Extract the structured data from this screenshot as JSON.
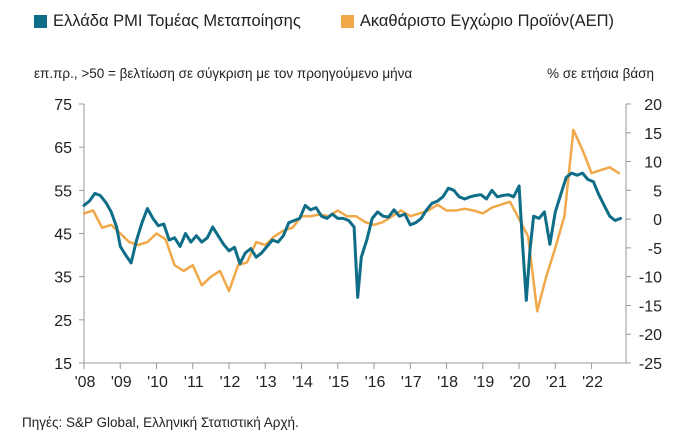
{
  "legend": {
    "pmi_label": "Ελλάδα PMI Τομέας Μεταποίησης",
    "gdp_label": "Ακαθάριστο Εγχώριο Προϊόν(ΑΕΠ)"
  },
  "subtitle_left": "επ.πρ., >50 = βελτίωση σε σύγκριση με τον προηγούμενο μήνα",
  "subtitle_right": "% σε ετήσια βάση",
  "source": "Πηγές: S&P Global, Ελληνική Στατιστική Αρχή.",
  "colors": {
    "pmi": "#0e6d87",
    "gdp": "#f0a848",
    "axis": "#9a9a9a"
  },
  "chart_data": {
    "type": "line",
    "x_range": [
      2008.0,
      2022.95
    ],
    "x_tick_labels": [
      "'08",
      "'09",
      "'10",
      "'11",
      "'12",
      "'13",
      "'14",
      "'15",
      "'16",
      "'17",
      "'18",
      "'19",
      "'20",
      "'21",
      "'22"
    ],
    "y_left": {
      "ylim": [
        15,
        75
      ],
      "ticks": [
        15,
        25,
        35,
        45,
        55,
        65,
        75
      ]
    },
    "y_right": {
      "ylim": [
        -25,
        20
      ],
      "ticks": [
        -25,
        -20,
        -15,
        -10,
        -5,
        0,
        5,
        10,
        15,
        20
      ]
    },
    "series": [
      {
        "name": "Ελλάδα PMI Τομέας Μεταποίησης",
        "axis": "left",
        "points": [
          [
            2008.0,
            51.5
          ],
          [
            2008.15,
            52.5
          ],
          [
            2008.3,
            54.3
          ],
          [
            2008.45,
            53.8
          ],
          [
            2008.6,
            52.2
          ],
          [
            2008.75,
            50.0
          ],
          [
            2008.9,
            46.5
          ],
          [
            2009.0,
            42.0
          ],
          [
            2009.15,
            40.0
          ],
          [
            2009.3,
            38.2
          ],
          [
            2009.45,
            43.5
          ],
          [
            2009.6,
            47.5
          ],
          [
            2009.75,
            50.8
          ],
          [
            2009.9,
            48.5
          ],
          [
            2010.05,
            46.8
          ],
          [
            2010.2,
            47.2
          ],
          [
            2010.35,
            43.5
          ],
          [
            2010.5,
            44.0
          ],
          [
            2010.65,
            42.0
          ],
          [
            2010.8,
            45.0
          ],
          [
            2010.95,
            43.0
          ],
          [
            2011.1,
            44.5
          ],
          [
            2011.25,
            43.0
          ],
          [
            2011.4,
            44.0
          ],
          [
            2011.55,
            46.5
          ],
          [
            2011.7,
            44.5
          ],
          [
            2011.85,
            42.5
          ],
          [
            2012.0,
            41.0
          ],
          [
            2012.15,
            41.8
          ],
          [
            2012.3,
            38.0
          ],
          [
            2012.45,
            40.5
          ],
          [
            2012.6,
            41.5
          ],
          [
            2012.75,
            39.5
          ],
          [
            2012.9,
            40.5
          ],
          [
            2013.05,
            42.0
          ],
          [
            2013.2,
            43.5
          ],
          [
            2013.35,
            43.0
          ],
          [
            2013.5,
            44.5
          ],
          [
            2013.65,
            47.5
          ],
          [
            2013.8,
            48.0
          ],
          [
            2013.95,
            48.5
          ],
          [
            2014.1,
            51.5
          ],
          [
            2014.25,
            50.5
          ],
          [
            2014.4,
            51.0
          ],
          [
            2014.55,
            49.0
          ],
          [
            2014.7,
            48.5
          ],
          [
            2014.85,
            49.5
          ],
          [
            2015.0,
            48.5
          ],
          [
            2015.15,
            48.5
          ],
          [
            2015.3,
            48.0
          ],
          [
            2015.45,
            46.5
          ],
          [
            2015.55,
            30.2
          ],
          [
            2015.65,
            39.5
          ],
          [
            2015.8,
            43.5
          ],
          [
            2015.95,
            48.5
          ],
          [
            2016.1,
            50.0
          ],
          [
            2016.25,
            49.0
          ],
          [
            2016.4,
            48.8
          ],
          [
            2016.55,
            50.5
          ],
          [
            2016.7,
            49.0
          ],
          [
            2016.85,
            49.5
          ],
          [
            2017.0,
            47.0
          ],
          [
            2017.15,
            47.5
          ],
          [
            2017.3,
            48.5
          ],
          [
            2017.45,
            50.5
          ],
          [
            2017.6,
            52.0
          ],
          [
            2017.75,
            52.5
          ],
          [
            2017.9,
            53.5
          ],
          [
            2018.05,
            55.5
          ],
          [
            2018.2,
            55.0
          ],
          [
            2018.35,
            53.5
          ],
          [
            2018.5,
            53.0
          ],
          [
            2018.65,
            53.5
          ],
          [
            2018.8,
            53.8
          ],
          [
            2018.95,
            54.0
          ],
          [
            2019.1,
            53.0
          ],
          [
            2019.25,
            55.0
          ],
          [
            2019.4,
            53.5
          ],
          [
            2019.55,
            53.8
          ],
          [
            2019.7,
            54.0
          ],
          [
            2019.85,
            53.5
          ],
          [
            2020.0,
            56.0
          ],
          [
            2020.1,
            42.0
          ],
          [
            2020.2,
            29.5
          ],
          [
            2020.3,
            41.0
          ],
          [
            2020.4,
            49.0
          ],
          [
            2020.55,
            48.5
          ],
          [
            2020.7,
            50.0
          ],
          [
            2020.85,
            42.5
          ],
          [
            2021.0,
            50.0
          ],
          [
            2021.15,
            54.0
          ],
          [
            2021.3,
            58.0
          ],
          [
            2021.45,
            59.0
          ],
          [
            2021.6,
            58.5
          ],
          [
            2021.75,
            59.0
          ],
          [
            2021.9,
            57.5
          ],
          [
            2022.05,
            57.0
          ],
          [
            2022.2,
            54.0
          ],
          [
            2022.35,
            51.5
          ],
          [
            2022.5,
            49.0
          ],
          [
            2022.65,
            48.0
          ],
          [
            2022.8,
            48.5
          ]
        ]
      },
      {
        "name": "Ακαθάριστο Εγχώριο Προϊόν(ΑΕΠ)",
        "axis": "right",
        "points": [
          [
            2008.0,
            1.0
          ],
          [
            2008.25,
            1.5
          ],
          [
            2008.5,
            -1.5
          ],
          [
            2008.75,
            -1.0
          ],
          [
            2009.0,
            -2.5
          ],
          [
            2009.25,
            -4.0
          ],
          [
            2009.5,
            -4.5
          ],
          [
            2009.75,
            -4.0
          ],
          [
            2010.0,
            -2.5
          ],
          [
            2010.25,
            -3.5
          ],
          [
            2010.5,
            -8.0
          ],
          [
            2010.75,
            -9.0
          ],
          [
            2011.0,
            -8.0
          ],
          [
            2011.25,
            -11.5
          ],
          [
            2011.5,
            -10.0
          ],
          [
            2011.75,
            -9.0
          ],
          [
            2012.0,
            -12.5
          ],
          [
            2012.25,
            -8.0
          ],
          [
            2012.5,
            -7.5
          ],
          [
            2012.75,
            -4.0
          ],
          [
            2013.0,
            -4.5
          ],
          [
            2013.25,
            -3.0
          ],
          [
            2013.5,
            -2.0
          ],
          [
            2013.75,
            -1.5
          ],
          [
            2014.0,
            0.5
          ],
          [
            2014.25,
            0.5
          ],
          [
            2014.5,
            0.8
          ],
          [
            2014.75,
            0.5
          ],
          [
            2015.0,
            1.5
          ],
          [
            2015.25,
            0.5
          ],
          [
            2015.5,
            0.5
          ],
          [
            2015.75,
            -0.5
          ],
          [
            2016.0,
            -1.0
          ],
          [
            2016.25,
            -0.5
          ],
          [
            2016.5,
            0.5
          ],
          [
            2016.75,
            1.5
          ],
          [
            2017.0,
            0.5
          ],
          [
            2017.25,
            1.0
          ],
          [
            2017.5,
            1.5
          ],
          [
            2017.75,
            2.5
          ],
          [
            2018.0,
            1.5
          ],
          [
            2018.25,
            1.5
          ],
          [
            2018.5,
            1.8
          ],
          [
            2018.75,
            1.5
          ],
          [
            2019.0,
            1.0
          ],
          [
            2019.25,
            2.0
          ],
          [
            2019.5,
            2.5
          ],
          [
            2019.75,
            3.0
          ],
          [
            2020.0,
            0.0
          ],
          [
            2020.25,
            -3.0
          ],
          [
            2020.5,
            -16.0
          ],
          [
            2020.75,
            -10.0
          ],
          [
            2021.0,
            -5.0
          ],
          [
            2021.25,
            0.5
          ],
          [
            2021.5,
            15.5
          ],
          [
            2021.75,
            12.0
          ],
          [
            2022.0,
            8.0
          ],
          [
            2022.25,
            8.5
          ],
          [
            2022.5,
            9.0
          ],
          [
            2022.75,
            8.0
          ]
        ]
      }
    ]
  }
}
